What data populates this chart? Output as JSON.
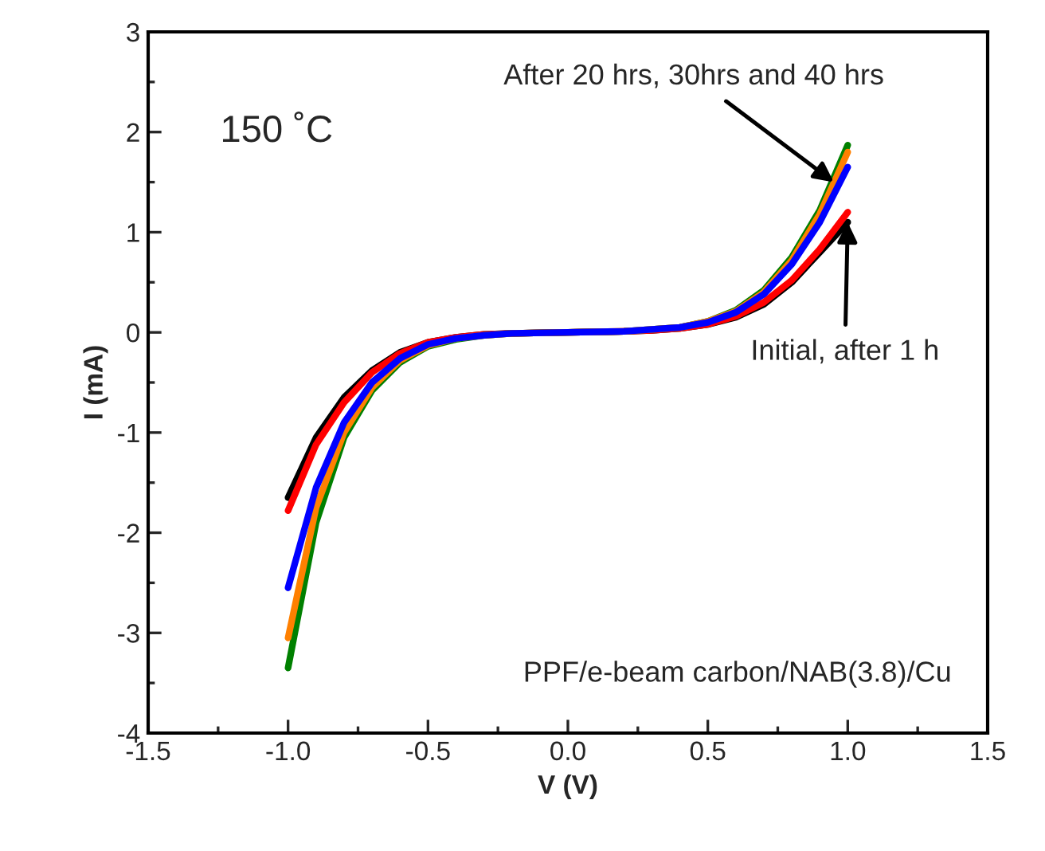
{
  "chart_data": {
    "type": "line",
    "xlabel": "V (V)",
    "ylabel": "I (mA)",
    "x": [
      -1.0,
      -0.9,
      -0.8,
      -0.7,
      -0.6,
      -0.5,
      -0.4,
      -0.3,
      -0.2,
      0.0,
      0.2,
      0.3,
      0.4,
      0.5,
      0.6,
      0.7,
      0.8,
      0.9,
      1.0
    ],
    "series": [
      {
        "color": "#000000",
        "values": [
          -1.65,
          -1.05,
          -0.65,
          -0.38,
          -0.2,
          -0.1,
          -0.05,
          -0.02,
          -0.01,
          0,
          0.01,
          0.02,
          0.04,
          0.08,
          0.15,
          0.28,
          0.5,
          0.8,
          1.1
        ]
      },
      {
        "color": "#ff0000",
        "values": [
          -1.78,
          -1.12,
          -0.7,
          -0.4,
          -0.21,
          -0.1,
          -0.05,
          -0.02,
          -0.01,
          0,
          0.01,
          0.02,
          0.04,
          0.08,
          0.16,
          0.3,
          0.52,
          0.83,
          1.2
        ]
      },
      {
        "color": "#008000",
        "values": [
          -3.35,
          -1.9,
          -1.05,
          -0.58,
          -0.3,
          -0.14,
          -0.07,
          -0.03,
          -0.01,
          0,
          0.01,
          0.03,
          0.05,
          0.11,
          0.22,
          0.42,
          0.75,
          1.22,
          1.87
        ]
      },
      {
        "color": "#ff8000",
        "values": [
          -3.05,
          -1.75,
          -1.0,
          -0.55,
          -0.28,
          -0.13,
          -0.06,
          -0.03,
          -0.01,
          0,
          0.01,
          0.03,
          0.05,
          0.11,
          0.21,
          0.4,
          0.72,
          1.18,
          1.8
        ]
      },
      {
        "color": "#0000ff",
        "values": [
          -2.55,
          -1.55,
          -0.9,
          -0.5,
          -0.26,
          -0.12,
          -0.06,
          -0.03,
          -0.01,
          0,
          0.01,
          0.03,
          0.05,
          0.1,
          0.2,
          0.38,
          0.68,
          1.1,
          1.65
        ]
      }
    ],
    "xlim": [
      -1.5,
      1.5
    ],
    "xticks": [
      {
        "value": -1.5,
        "label": "-1.5"
      },
      {
        "value": -1.0,
        "label": "-1.0"
      },
      {
        "value": -0.5,
        "label": "-0.5"
      },
      {
        "value": 0.0,
        "label": "0.0"
      },
      {
        "value": 0.5,
        "label": "0.5"
      },
      {
        "value": 1.0,
        "label": "1.0"
      },
      {
        "value": 1.5,
        "label": "1.5"
      }
    ],
    "ylim": [
      -4,
      3
    ],
    "yticks": [
      -4,
      -3,
      -2,
      -1,
      0,
      1,
      2,
      3
    ],
    "grid": false,
    "legend": false,
    "marker": "none",
    "line_style": "solid",
    "annotations": [
      {
        "text": "After 20 hrs, 30hrs and 40 hrs",
        "x": 0.95,
        "y": 1.5
      },
      {
        "text": "Initial, after 1 h",
        "x": 1.0,
        "y": 1.1
      },
      "150 ˚C",
      "PPF/e-beam carbon/NAB(3.8)/Cu"
    ]
  }
}
